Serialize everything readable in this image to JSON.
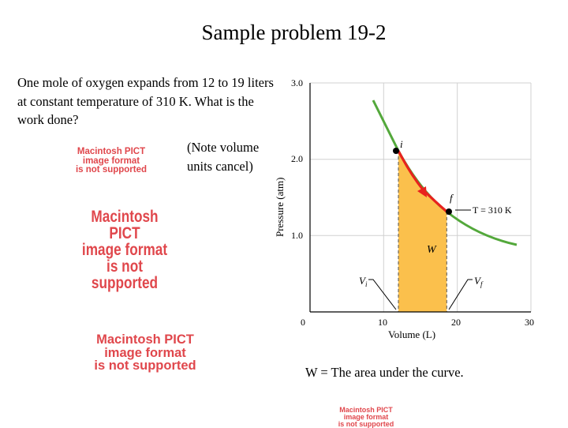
{
  "slide": {
    "title": "Sample problem 19-2",
    "problem_text": "One mole of oxygen expands from 12 to 19 liters at constant temperature of 310 K. What is the work done?",
    "note_line1": "(Note volume",
    "note_line2": "units cancel)",
    "answer_text": "W = The area under the curve."
  },
  "pict_placeholders": [
    {
      "line1": "Macintosh PICT",
      "line2": "image format",
      "line3": "is not supported"
    },
    {
      "line1": "Macintosh PICT",
      "line2": "image format",
      "line3": "is not supported"
    },
    {
      "line1": "Macintosh PICT",
      "line2": "image format",
      "line3": "is not supported"
    },
    {
      "line1": "Macintosh PICT",
      "line2": "image format",
      "line3": "is not supported"
    }
  ],
  "figure": {
    "ylabel": "Pressure (atm)",
    "xlabel": "Volume (L)",
    "y_ticks": [
      "3.0",
      "2.0",
      "1.0"
    ],
    "x_ticks": [
      "0",
      "10",
      "20",
      "30"
    ],
    "label_i": "i",
    "label_f": "f",
    "label_W": "W",
    "label_Vi": "V",
    "label_Vi_sub": "i",
    "label_Vf": "V",
    "label_Vf_sub": "f",
    "label_T": "T = 310 K",
    "colors": {
      "curve": "#53a83b",
      "path": "#e8221e",
      "area": "#fbc04c",
      "grid": "#d0d0d0"
    }
  }
}
